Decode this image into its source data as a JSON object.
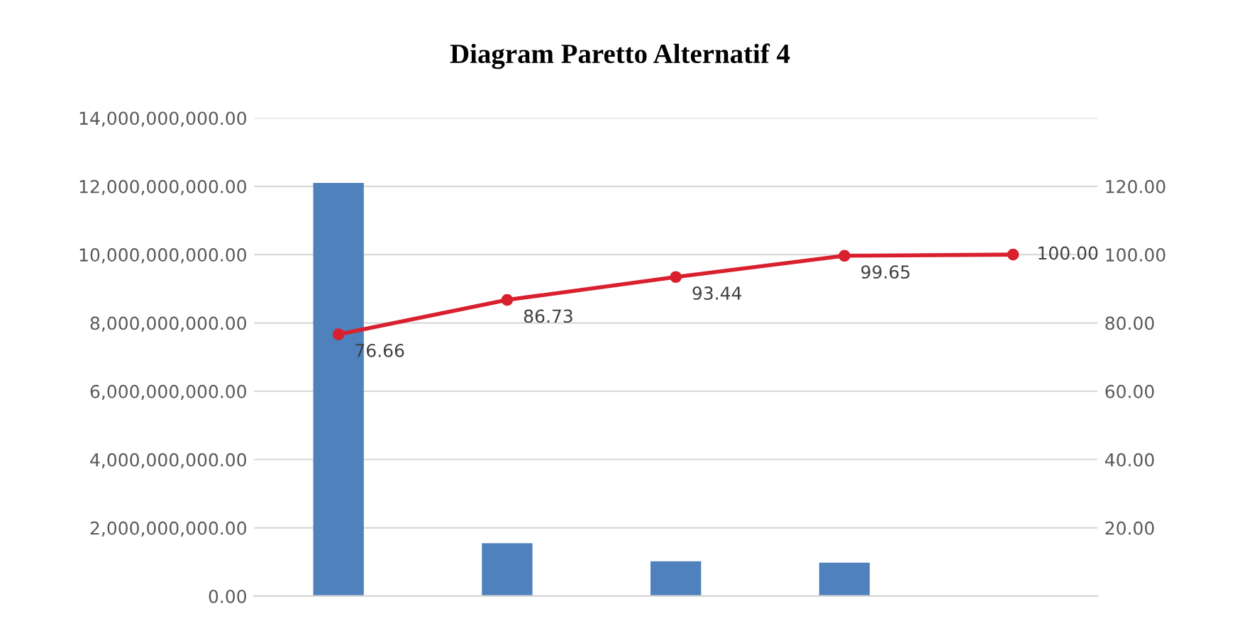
{
  "chart_data": {
    "type": "bar",
    "title": "Diagram Paretto Alternatif 4",
    "categories": [
      null,
      null,
      null,
      null,
      null
    ],
    "series": [
      {
        "color": "#4f81bd",
        "values": [
          12100000000,
          1550000000,
          1020000000,
          980000000,
          null
        ]
      },
      {
        "type": "line",
        "axis": "y2",
        "color": "#d9202f",
        "values": [
          76.66,
          86.73,
          93.44,
          99.65,
          100.0
        ],
        "value_labels": [
          "76.66",
          "86.73",
          "93.44",
          "99.65",
          "100.00"
        ],
        "marker": "circle"
      }
    ],
    "ylim": [
      0,
      14000000000
    ],
    "yticks": [
      {
        "value": 0,
        "label": "0.00"
      },
      {
        "value": 2000000000,
        "label": "2,000,000,000.00"
      },
      {
        "value": 4000000000,
        "label": "4,000,000,000.00"
      },
      {
        "value": 6000000000,
        "label": "6,000,000,000.00"
      },
      {
        "value": 8000000000,
        "label": "8,000,000,000.00"
      },
      {
        "value": 10000000000,
        "label": "10,000,000,000.00"
      },
      {
        "value": 12000000000,
        "label": "12,000,000,000.00"
      },
      {
        "value": 14000000000,
        "label": "14,000,000,000.00"
      }
    ],
    "y2lim": [
      0,
      140
    ],
    "y2ticks": [
      {
        "value": 20,
        "label": "20.00"
      },
      {
        "value": 40,
        "label": "40.00"
      },
      {
        "value": 60,
        "label": "60.00"
      },
      {
        "value": 80,
        "label": "80.00"
      },
      {
        "value": 100,
        "label": "100.00"
      },
      {
        "value": 120,
        "label": "120.00"
      }
    ],
    "grid": "y"
  }
}
